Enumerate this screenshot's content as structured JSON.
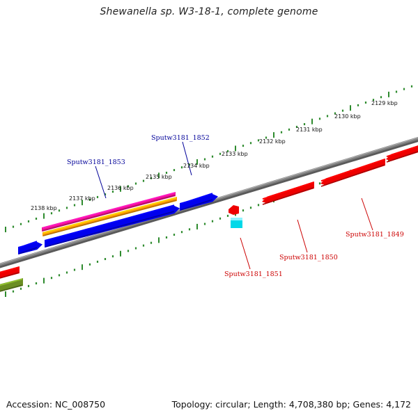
{
  "header": {
    "title": "Shewanella sp. W3-18-1, complete genome"
  },
  "footer": {
    "accession": "Accession: NC_008750",
    "summary": "Topology: circular; Length: 4,708,380 bp; Genes: 4,172"
  },
  "colors": {
    "backbone": "#808080",
    "tick": "#2e8b2e",
    "forward_gene": "#0000ee",
    "reverse_gene": "#ee0000",
    "rna_gene": "#00d8e8",
    "pseudo_gene": "#6b8e23",
    "feature_magenta": "#ee1190",
    "feature_orange": "#ff9c00",
    "forward_label": "#000099",
    "reverse_label": "#cc0000"
  },
  "scale_labels": [
    "2129 kbp",
    "2130 kbp",
    "2131 kbp",
    "2132 kbp",
    "2133 kbp",
    "2134 kbp",
    "2135 kbp",
    "2136 kbp",
    "2137 kbp",
    "2138 kbp"
  ],
  "gene_labels": {
    "forward": [
      "Sputw3181_1853",
      "Sputw3181_1852"
    ],
    "reverse": [
      "Sputw3181_1849",
      "Sputw3181_1850",
      "Sputw3181_1851"
    ]
  }
}
